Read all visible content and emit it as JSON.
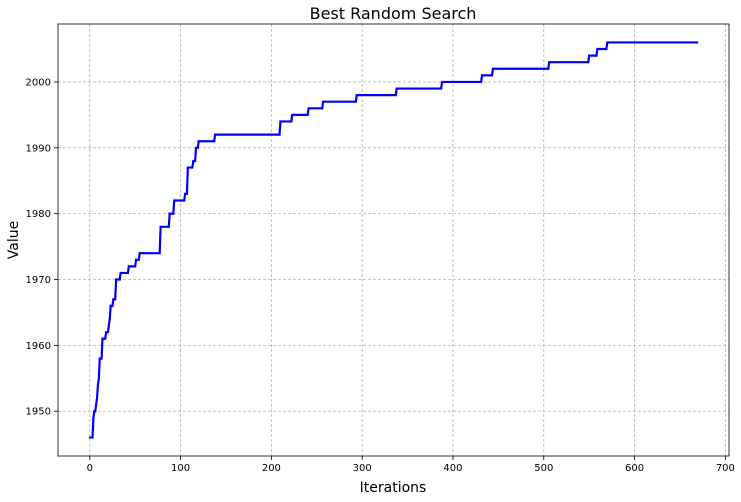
{
  "chart_data": {
    "type": "line",
    "title": "Best Random Search",
    "xlabel": "Iterations",
    "ylabel": "Value",
    "xlim": [
      -35,
      704
    ],
    "ylim": [
      1943.2,
      2008.8
    ],
    "xticks": [
      0,
      100,
      200,
      300,
      400,
      500,
      600,
      700
    ],
    "yticks": [
      1950,
      1960,
      1970,
      1980,
      1990,
      2000
    ],
    "grid": true,
    "series": [
      {
        "color": "#0000ff",
        "step": true,
        "points": [
          [
            0,
            1946
          ],
          [
            3,
            1946
          ],
          [
            4,
            1949
          ],
          [
            5,
            1950
          ],
          [
            6,
            1950
          ],
          [
            7,
            1951
          ],
          [
            8,
            1952
          ],
          [
            9,
            1954
          ],
          [
            10,
            1955
          ],
          [
            11,
            1958
          ],
          [
            13,
            1958
          ],
          [
            14,
            1961
          ],
          [
            17,
            1961
          ],
          [
            18,
            1962
          ],
          [
            20,
            1962
          ],
          [
            21,
            1963
          ],
          [
            22,
            1964
          ],
          [
            23,
            1966
          ],
          [
            25,
            1966
          ],
          [
            26,
            1967
          ],
          [
            28,
            1967
          ],
          [
            29,
            1970
          ],
          [
            33,
            1970
          ],
          [
            34,
            1971
          ],
          [
            42,
            1971
          ],
          [
            43,
            1972
          ],
          [
            50,
            1972
          ],
          [
            51,
            1973
          ],
          [
            54,
            1973
          ],
          [
            55,
            1974
          ],
          [
            77,
            1974
          ],
          [
            78,
            1978
          ],
          [
            87,
            1978
          ],
          [
            88,
            1980
          ],
          [
            92,
            1980
          ],
          [
            93,
            1982
          ],
          [
            104,
            1982
          ],
          [
            105,
            1983
          ],
          [
            107,
            1983
          ],
          [
            108,
            1987
          ],
          [
            113,
            1987
          ],
          [
            114,
            1988
          ],
          [
            116,
            1988
          ],
          [
            117,
            1990
          ],
          [
            119,
            1990
          ],
          [
            120,
            1991
          ],
          [
            137,
            1991
          ],
          [
            138,
            1992
          ],
          [
            209,
            1992
          ],
          [
            210,
            1994
          ],
          [
            222,
            1994
          ],
          [
            223,
            1995
          ],
          [
            240,
            1995
          ],
          [
            241,
            1996
          ],
          [
            256,
            1996
          ],
          [
            257,
            1997
          ],
          [
            293,
            1997
          ],
          [
            294,
            1998
          ],
          [
            337,
            1998
          ],
          [
            338,
            1999
          ],
          [
            387,
            1999
          ],
          [
            388,
            2000
          ],
          [
            431,
            2000
          ],
          [
            432,
            2001
          ],
          [
            443,
            2001
          ],
          [
            444,
            2002
          ],
          [
            505,
            2002
          ],
          [
            506,
            2003
          ],
          [
            549,
            2003
          ],
          [
            550,
            2004
          ],
          [
            558,
            2004
          ],
          [
            559,
            2005
          ],
          [
            569,
            2005
          ],
          [
            570,
            2006
          ],
          [
            669,
            2006
          ]
        ]
      }
    ]
  }
}
